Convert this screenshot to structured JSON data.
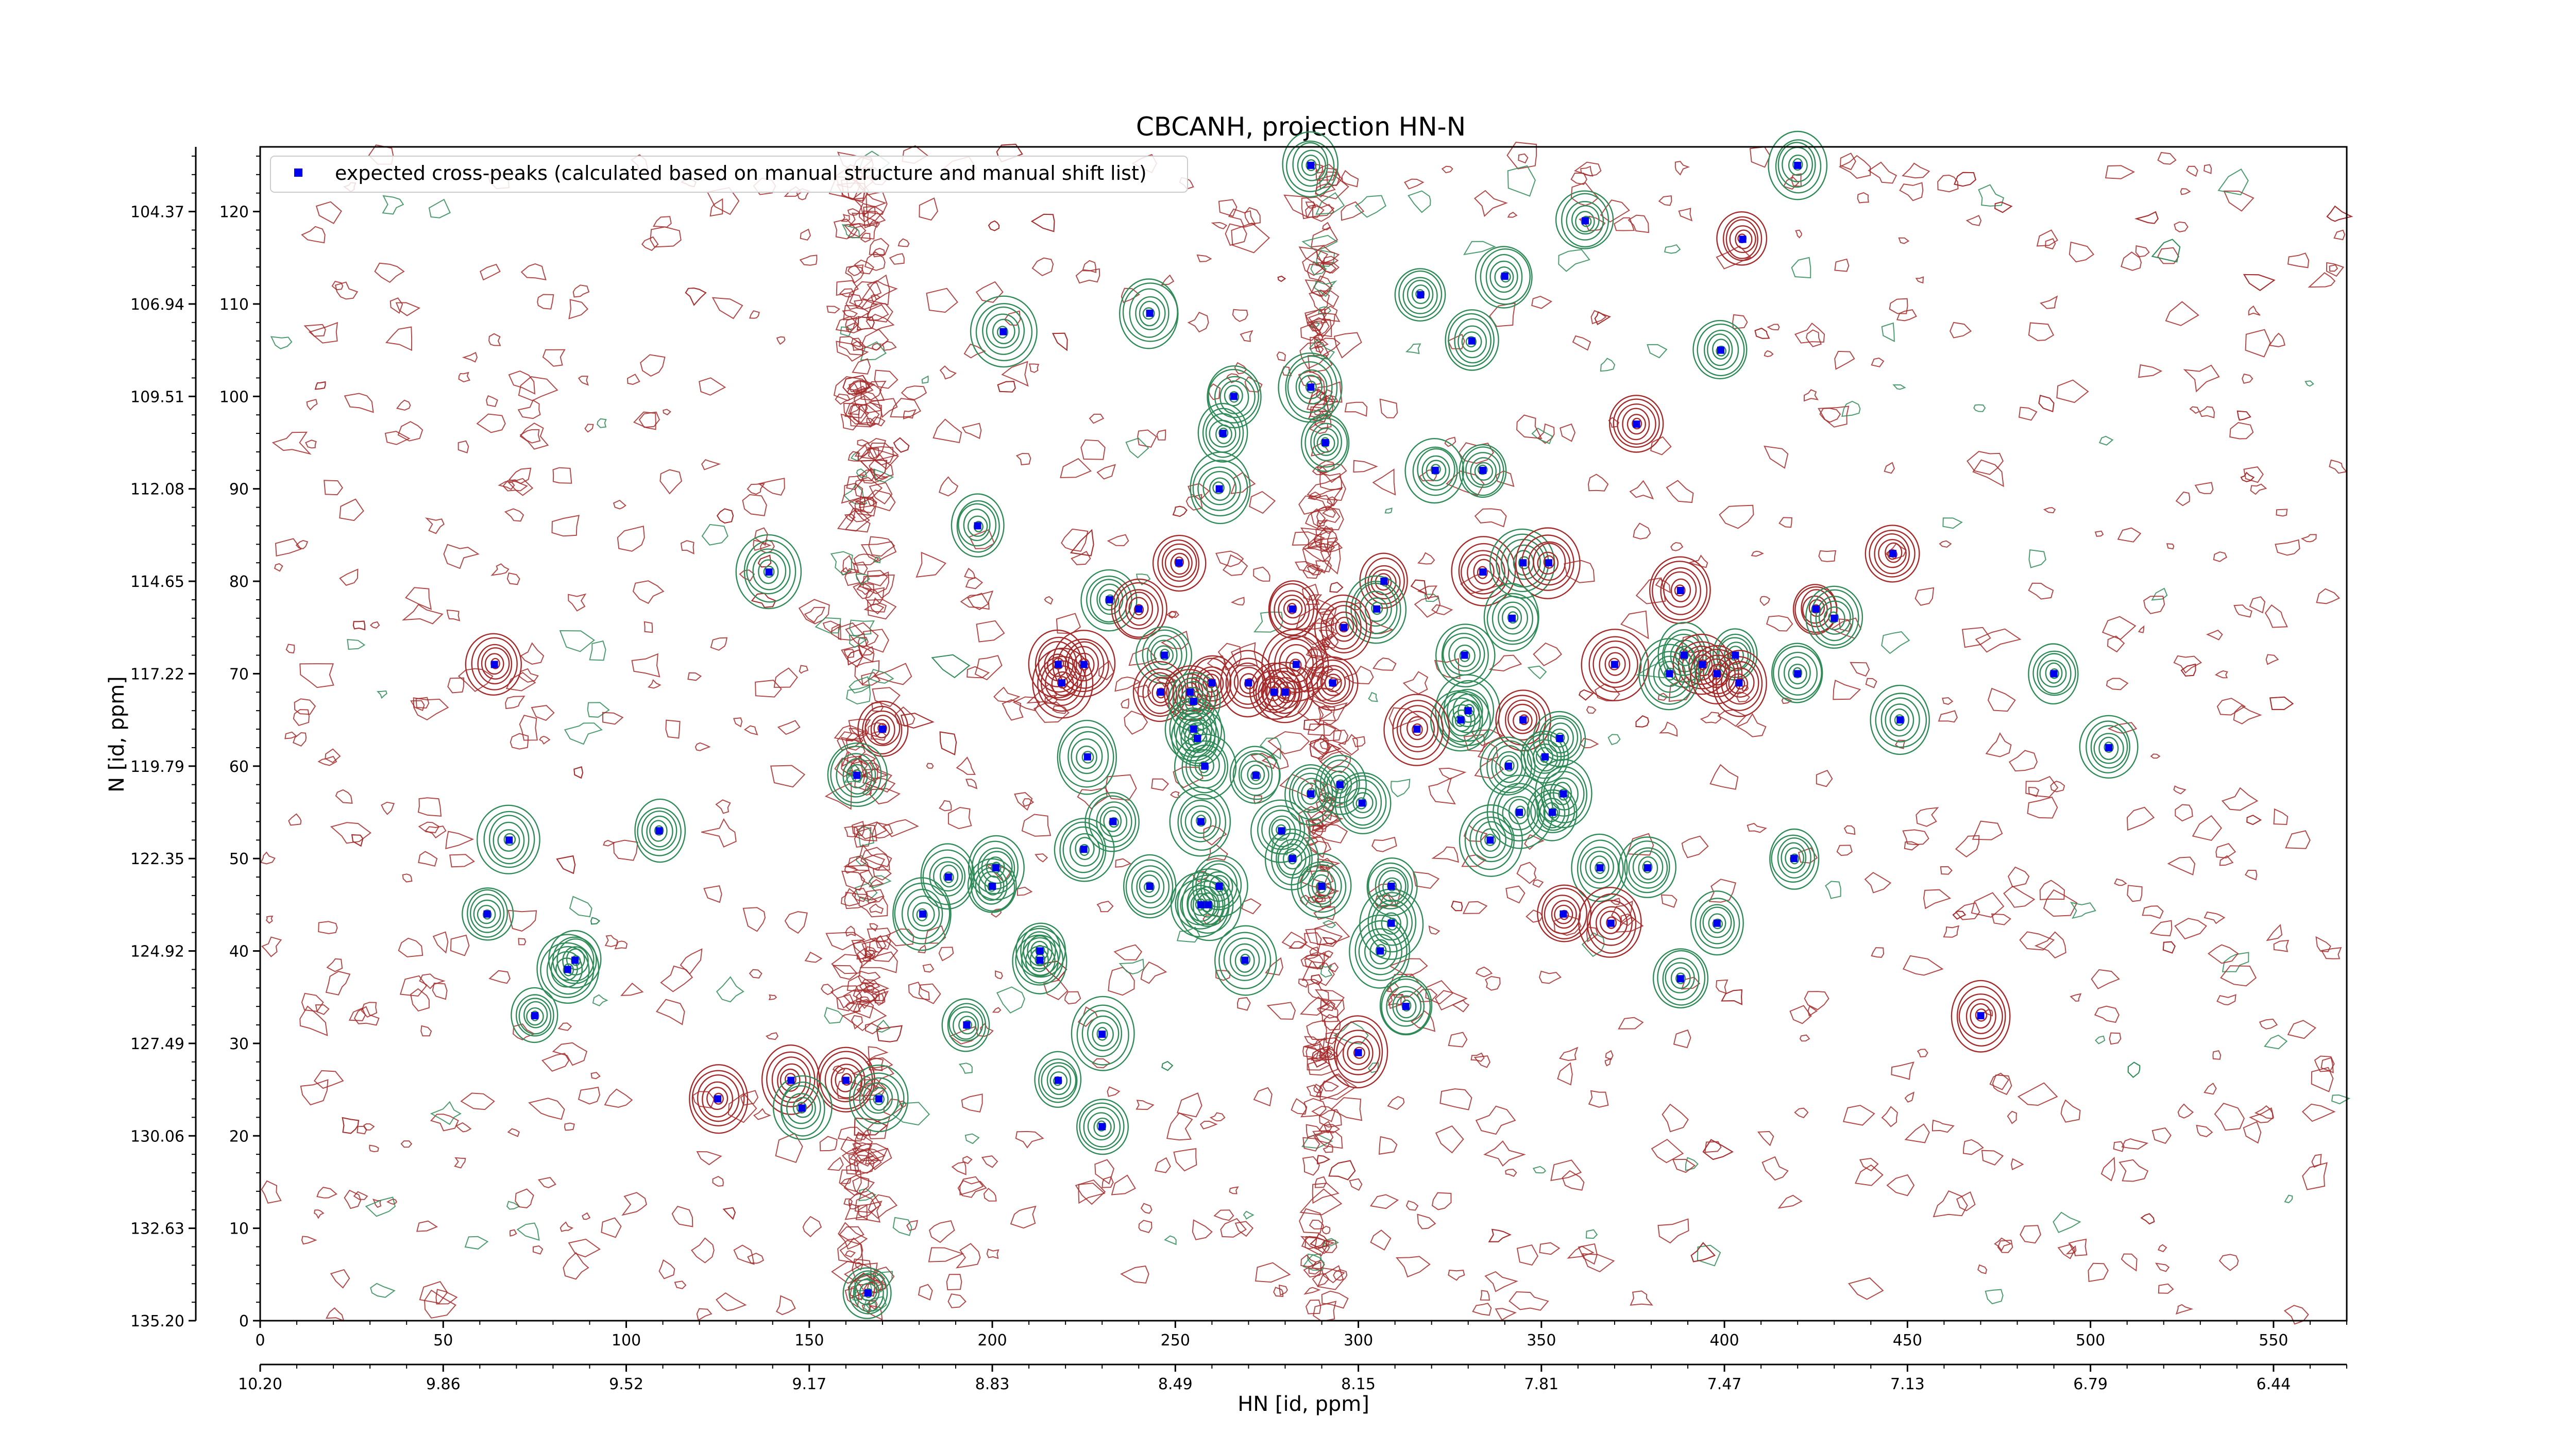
{
  "chart_data": {
    "type": "scatter",
    "title": "CBCANH, projection HN-N",
    "xlabel_bottom": "HN [id, ppm]",
    "ylabel_left": "N [id, ppm]",
    "x_index_ticks": [
      "0",
      "50",
      "100",
      "150",
      "200",
      "250",
      "300",
      "350",
      "400",
      "450",
      "500",
      "550"
    ],
    "x_ppm_ticks": [
      "10.20",
      "9.86",
      "9.52",
      "9.17",
      "8.83",
      "8.49",
      "8.15",
      "7.81",
      "7.47",
      "7.13",
      "6.79",
      "6.44"
    ],
    "y_index_ticks": [
      "0",
      "10",
      "20",
      "30",
      "40",
      "50",
      "60",
      "70",
      "80",
      "90",
      "100",
      "110",
      "120"
    ],
    "y_ppm_ticks": [
      "135.20",
      "132.63",
      "130.06",
      "127.49",
      "124.92",
      "122.35",
      "119.79",
      "117.22",
      "114.65",
      "112.08",
      "109.51",
      "106.94",
      "104.37"
    ],
    "xlim": [
      0,
      570
    ],
    "ylim": [
      0,
      127
    ],
    "legend": {
      "label": "expected cross-peaks (calculated based on manual structure and manual shift list)",
      "placement": "upper-left"
    },
    "colors": {
      "marker": "#0000ee",
      "contour_positive": "#2e8b57",
      "contour_negative": "#a52a2a"
    },
    "points": [
      {
        "x": 287,
        "y": 125,
        "s": 1
      },
      {
        "x": 420,
        "y": 125,
        "s": 1
      },
      {
        "x": 362,
        "y": 119,
        "s": 1
      },
      {
        "x": 405,
        "y": 117,
        "s": -1
      },
      {
        "x": 340,
        "y": 113,
        "s": 1
      },
      {
        "x": 317,
        "y": 111,
        "s": 1
      },
      {
        "x": 243,
        "y": 109,
        "s": 1
      },
      {
        "x": 203,
        "y": 107,
        "s": 1
      },
      {
        "x": 331,
        "y": 106,
        "s": 1
      },
      {
        "x": 399,
        "y": 105,
        "s": 1
      },
      {
        "x": 266,
        "y": 100,
        "s": 1
      },
      {
        "x": 287,
        "y": 101,
        "s": 1
      },
      {
        "x": 263,
        "y": 96,
        "s": 1
      },
      {
        "x": 291,
        "y": 95,
        "s": 1
      },
      {
        "x": 376,
        "y": 97,
        "s": -1
      },
      {
        "x": 321,
        "y": 92,
        "s": 1
      },
      {
        "x": 334,
        "y": 92,
        "s": 1
      },
      {
        "x": 262,
        "y": 90,
        "s": 1
      },
      {
        "x": 196,
        "y": 86,
        "s": 1
      },
      {
        "x": 446,
        "y": 83,
        "s": -1
      },
      {
        "x": 139,
        "y": 81,
        "s": 1
      },
      {
        "x": 251,
        "y": 82,
        "s": -1
      },
      {
        "x": 334,
        "y": 81,
        "s": -1
      },
      {
        "x": 345,
        "y": 82,
        "s": 1
      },
      {
        "x": 352,
        "y": 82,
        "s": -1
      },
      {
        "x": 307,
        "y": 80,
        "s": -1
      },
      {
        "x": 388,
        "y": 79,
        "s": -1
      },
      {
        "x": 232,
        "y": 78,
        "s": 1
      },
      {
        "x": 240,
        "y": 77,
        "s": -1
      },
      {
        "x": 282,
        "y": 77,
        "s": -1
      },
      {
        "x": 305,
        "y": 77,
        "s": 1
      },
      {
        "x": 342,
        "y": 76,
        "s": 1
      },
      {
        "x": 425,
        "y": 77,
        "s": -1
      },
      {
        "x": 430,
        "y": 76,
        "s": 1
      },
      {
        "x": 296,
        "y": 75,
        "s": -1
      },
      {
        "x": 64,
        "y": 71,
        "s": -1
      },
      {
        "x": 225,
        "y": 71,
        "s": -1
      },
      {
        "x": 218,
        "y": 71,
        "s": -1
      },
      {
        "x": 247,
        "y": 72,
        "s": 1
      },
      {
        "x": 329,
        "y": 72,
        "s": 1
      },
      {
        "x": 370,
        "y": 71,
        "s": -1
      },
      {
        "x": 389,
        "y": 72,
        "s": 1
      },
      {
        "x": 394,
        "y": 71,
        "s": -1
      },
      {
        "x": 403,
        "y": 72,
        "s": 1
      },
      {
        "x": 420,
        "y": 70,
        "s": 1
      },
      {
        "x": 283,
        "y": 71,
        "s": -1
      },
      {
        "x": 219,
        "y": 69,
        "s": -1
      },
      {
        "x": 246,
        "y": 68,
        "s": -1
      },
      {
        "x": 254,
        "y": 68,
        "s": -1
      },
      {
        "x": 260,
        "y": 69,
        "s": -1
      },
      {
        "x": 270,
        "y": 69,
        "s": -1
      },
      {
        "x": 277,
        "y": 68,
        "s": -1
      },
      {
        "x": 280,
        "y": 68,
        "s": -1
      },
      {
        "x": 293,
        "y": 69,
        "s": -1
      },
      {
        "x": 385,
        "y": 70,
        "s": 1
      },
      {
        "x": 398,
        "y": 70,
        "s": -1
      },
      {
        "x": 404,
        "y": 69,
        "s": -1
      },
      {
        "x": 490,
        "y": 70,
        "s": 1
      },
      {
        "x": 255,
        "y": 67,
        "s": 1
      },
      {
        "x": 330,
        "y": 66,
        "s": 1
      },
      {
        "x": 328,
        "y": 65,
        "s": 1
      },
      {
        "x": 345,
        "y": 65,
        "s": -1
      },
      {
        "x": 255,
        "y": 64,
        "s": 1
      },
      {
        "x": 170,
        "y": 64,
        "s": -1
      },
      {
        "x": 448,
        "y": 65,
        "s": 1
      },
      {
        "x": 316,
        "y": 64,
        "s": -1
      },
      {
        "x": 256,
        "y": 63,
        "s": 1
      },
      {
        "x": 505,
        "y": 62,
        "s": 1
      },
      {
        "x": 355,
        "y": 63,
        "s": 1
      },
      {
        "x": 226,
        "y": 61,
        "s": 1
      },
      {
        "x": 351,
        "y": 61,
        "s": 1
      },
      {
        "x": 258,
        "y": 60,
        "s": 1
      },
      {
        "x": 341,
        "y": 60,
        "s": 1
      },
      {
        "x": 272,
        "y": 59,
        "s": 1
      },
      {
        "x": 163,
        "y": 59,
        "s": 1
      },
      {
        "x": 295,
        "y": 58,
        "s": 1
      },
      {
        "x": 356,
        "y": 57,
        "s": 1
      },
      {
        "x": 287,
        "y": 57,
        "s": 1
      },
      {
        "x": 344,
        "y": 55,
        "s": 1
      },
      {
        "x": 301,
        "y": 56,
        "s": 1
      },
      {
        "x": 353,
        "y": 55,
        "s": 1
      },
      {
        "x": 233,
        "y": 54,
        "s": 1
      },
      {
        "x": 279,
        "y": 53,
        "s": 1
      },
      {
        "x": 109,
        "y": 53,
        "s": 1
      },
      {
        "x": 68,
        "y": 52,
        "s": 1
      },
      {
        "x": 336,
        "y": 52,
        "s": 1
      },
      {
        "x": 257,
        "y": 54,
        "s": 1
      },
      {
        "x": 225,
        "y": 51,
        "s": 1
      },
      {
        "x": 282,
        "y": 50,
        "s": 1
      },
      {
        "x": 379,
        "y": 49,
        "s": 1
      },
      {
        "x": 366,
        "y": 49,
        "s": 1
      },
      {
        "x": 419,
        "y": 50,
        "s": 1
      },
      {
        "x": 201,
        "y": 49,
        "s": 1
      },
      {
        "x": 188,
        "y": 48,
        "s": 1
      },
      {
        "x": 243,
        "y": 47,
        "s": 1
      },
      {
        "x": 262,
        "y": 47,
        "s": 1
      },
      {
        "x": 309,
        "y": 47,
        "s": 1
      },
      {
        "x": 200,
        "y": 47,
        "s": 1
      },
      {
        "x": 290,
        "y": 47,
        "s": 1
      },
      {
        "x": 257,
        "y": 45,
        "s": 1
      },
      {
        "x": 259,
        "y": 45,
        "s": 1
      },
      {
        "x": 181,
        "y": 44,
        "s": 1
      },
      {
        "x": 62,
        "y": 44,
        "s": 1
      },
      {
        "x": 356,
        "y": 44,
        "s": -1
      },
      {
        "x": 398,
        "y": 43,
        "s": 1
      },
      {
        "x": 369,
        "y": 43,
        "s": -1
      },
      {
        "x": 309,
        "y": 43,
        "s": 1
      },
      {
        "x": 306,
        "y": 40,
        "s": 1
      },
      {
        "x": 213,
        "y": 40,
        "s": 1
      },
      {
        "x": 213,
        "y": 39,
        "s": 1
      },
      {
        "x": 269,
        "y": 39,
        "s": 1
      },
      {
        "x": 86,
        "y": 39,
        "s": 1
      },
      {
        "x": 84,
        "y": 38,
        "s": 1
      },
      {
        "x": 388,
        "y": 37,
        "s": 1
      },
      {
        "x": 313,
        "y": 34,
        "s": 1
      },
      {
        "x": 75,
        "y": 33,
        "s": 1
      },
      {
        "x": 470,
        "y": 33,
        "s": -1
      },
      {
        "x": 193,
        "y": 32,
        "s": 1
      },
      {
        "x": 230,
        "y": 31,
        "s": 1
      },
      {
        "x": 300,
        "y": 29,
        "s": -1
      },
      {
        "x": 145,
        "y": 26,
        "s": -1
      },
      {
        "x": 160,
        "y": 26,
        "s": -1
      },
      {
        "x": 218,
        "y": 26,
        "s": 1
      },
      {
        "x": 125,
        "y": 24,
        "s": -1
      },
      {
        "x": 169,
        "y": 24,
        "s": 1
      },
      {
        "x": 148,
        "y": 23,
        "s": 1
      },
      {
        "x": 230,
        "y": 21,
        "s": 1
      },
      {
        "x": 166,
        "y": 3,
        "s": 1
      }
    ]
  }
}
